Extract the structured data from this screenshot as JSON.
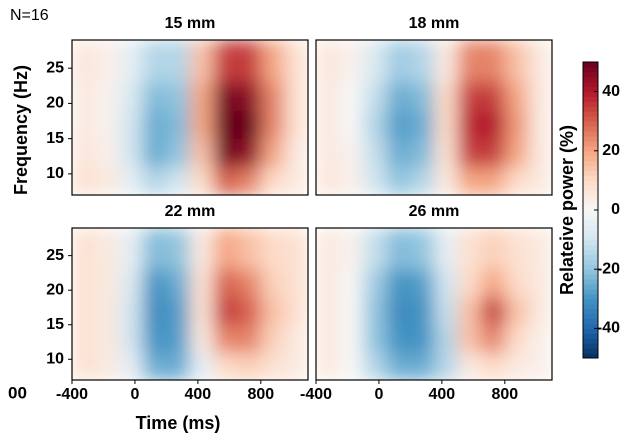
{
  "chart_data": {
    "type": "heatmap",
    "annotation": "N=16",
    "cropped_label": "00",
    "xlabel": "Time (ms)",
    "ylabel": "Frequency (Hz)",
    "colorbar_label": "Relateive power (%)",
    "xlim": [
      -400,
      1100
    ],
    "xticks": [
      -400,
      0,
      400,
      800
    ],
    "ylim": [
      7,
      29
    ],
    "yticks": [
      10,
      15,
      20,
      25
    ],
    "x_edges": [
      -400,
      -250,
      -100,
      50,
      200,
      350,
      500,
      650,
      800,
      950,
      1100
    ],
    "y_edges": [
      7,
      11,
      15,
      19,
      23,
      29
    ],
    "clim": [
      -50,
      50
    ],
    "colorbar_ticks": [
      -40,
      -20,
      0,
      20,
      40
    ],
    "colormap": [
      "#053061",
      "#2166ac",
      "#4393c3",
      "#92c5de",
      "#d1e5f0",
      "#f7f7f7",
      "#fddbc7",
      "#f4a582",
      "#d6604d",
      "#b2182b",
      "#67001f"
    ],
    "panels": [
      {
        "title": "15 mm",
        "z": [
          [
            8,
            5,
            -5,
            -15,
            -10,
            10,
            30,
            25,
            10,
            5
          ],
          [
            6,
            3,
            -10,
            -25,
            -20,
            15,
            48,
            45,
            20,
            5
          ],
          [
            5,
            2,
            -10,
            -25,
            -22,
            20,
            50,
            50,
            25,
            8
          ],
          [
            5,
            2,
            -8,
            -22,
            -20,
            20,
            48,
            45,
            25,
            8
          ],
          [
            6,
            3,
            -5,
            -15,
            -15,
            15,
            35,
            35,
            20,
            8
          ]
        ]
      },
      {
        "title": "18 mm",
        "z": [
          [
            6,
            3,
            -10,
            -20,
            -15,
            5,
            20,
            20,
            10,
            5
          ],
          [
            5,
            2,
            -12,
            -25,
            -22,
            8,
            35,
            35,
            20,
            5
          ],
          [
            5,
            0,
            -15,
            -28,
            -25,
            10,
            38,
            40,
            22,
            5
          ],
          [
            5,
            0,
            -12,
            -25,
            -22,
            10,
            35,
            35,
            20,
            5
          ],
          [
            6,
            2,
            -8,
            -18,
            -15,
            5,
            25,
            25,
            15,
            5
          ]
        ]
      },
      {
        "title": "22 mm",
        "z": [
          [
            8,
            5,
            -5,
            -25,
            -25,
            -5,
            10,
            12,
            8,
            5
          ],
          [
            8,
            5,
            -10,
            -30,
            -28,
            5,
            25,
            25,
            12,
            5
          ],
          [
            8,
            5,
            -10,
            -32,
            -28,
            8,
            35,
            30,
            15,
            8
          ],
          [
            8,
            5,
            -8,
            -30,
            -25,
            8,
            30,
            25,
            12,
            8
          ],
          [
            8,
            5,
            -5,
            -22,
            -20,
            5,
            20,
            15,
            10,
            8
          ]
        ]
      },
      {
        "title": "26 mm",
        "z": [
          [
            5,
            0,
            -15,
            -25,
            -25,
            -15,
            5,
            10,
            5,
            3
          ],
          [
            5,
            0,
            -20,
            -30,
            -30,
            -15,
            15,
            25,
            10,
            3
          ],
          [
            5,
            0,
            -20,
            -32,
            -30,
            -12,
            15,
            35,
            15,
            5
          ],
          [
            5,
            0,
            -18,
            -30,
            -28,
            -10,
            10,
            20,
            10,
            5
          ],
          [
            5,
            2,
            -12,
            -22,
            -20,
            -5,
            8,
            12,
            8,
            5
          ]
        ]
      }
    ]
  }
}
